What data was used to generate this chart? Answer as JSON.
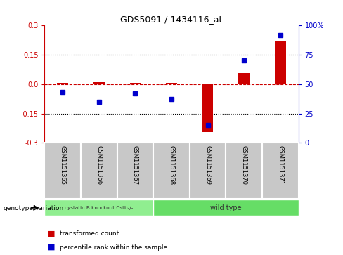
{
  "title": "GDS5091 / 1434116_at",
  "samples": [
    "GSM1151365",
    "GSM1151366",
    "GSM1151367",
    "GSM1151368",
    "GSM1151369",
    "GSM1151370",
    "GSM1151371"
  ],
  "transformed_count": [
    0.005,
    0.01,
    0.008,
    0.005,
    -0.245,
    0.055,
    0.22
  ],
  "percentile_rank": [
    43,
    35,
    42,
    37,
    15,
    70,
    92
  ],
  "ylim_left": [
    -0.3,
    0.3
  ],
  "ylim_right": [
    0,
    100
  ],
  "yticks_left": [
    -0.3,
    -0.15,
    0.0,
    0.15,
    0.3
  ],
  "yticks_right": [
    0,
    25,
    50,
    75,
    100
  ],
  "ytick_labels_right": [
    "0",
    "25",
    "50",
    "75",
    "100%"
  ],
  "hlines": [
    0.15,
    -0.15
  ],
  "bar_color": "#cc0000",
  "scatter_color": "#0000cc",
  "zero_line_color": "#cc0000",
  "group1_label": "cystatin B knockout Cstb-/-",
  "group2_label": "wild type",
  "group1_indices": [
    0,
    1,
    2
  ],
  "group2_indices": [
    3,
    4,
    5,
    6
  ],
  "group1_color": "#90ee90",
  "group2_color": "#66dd66",
  "legend_red": "transformed count",
  "legend_blue": "percentile rank within the sample",
  "genotype_label": "genotype/variation",
  "background_plot": "#ffffff",
  "tick_area_color": "#c8c8c8"
}
